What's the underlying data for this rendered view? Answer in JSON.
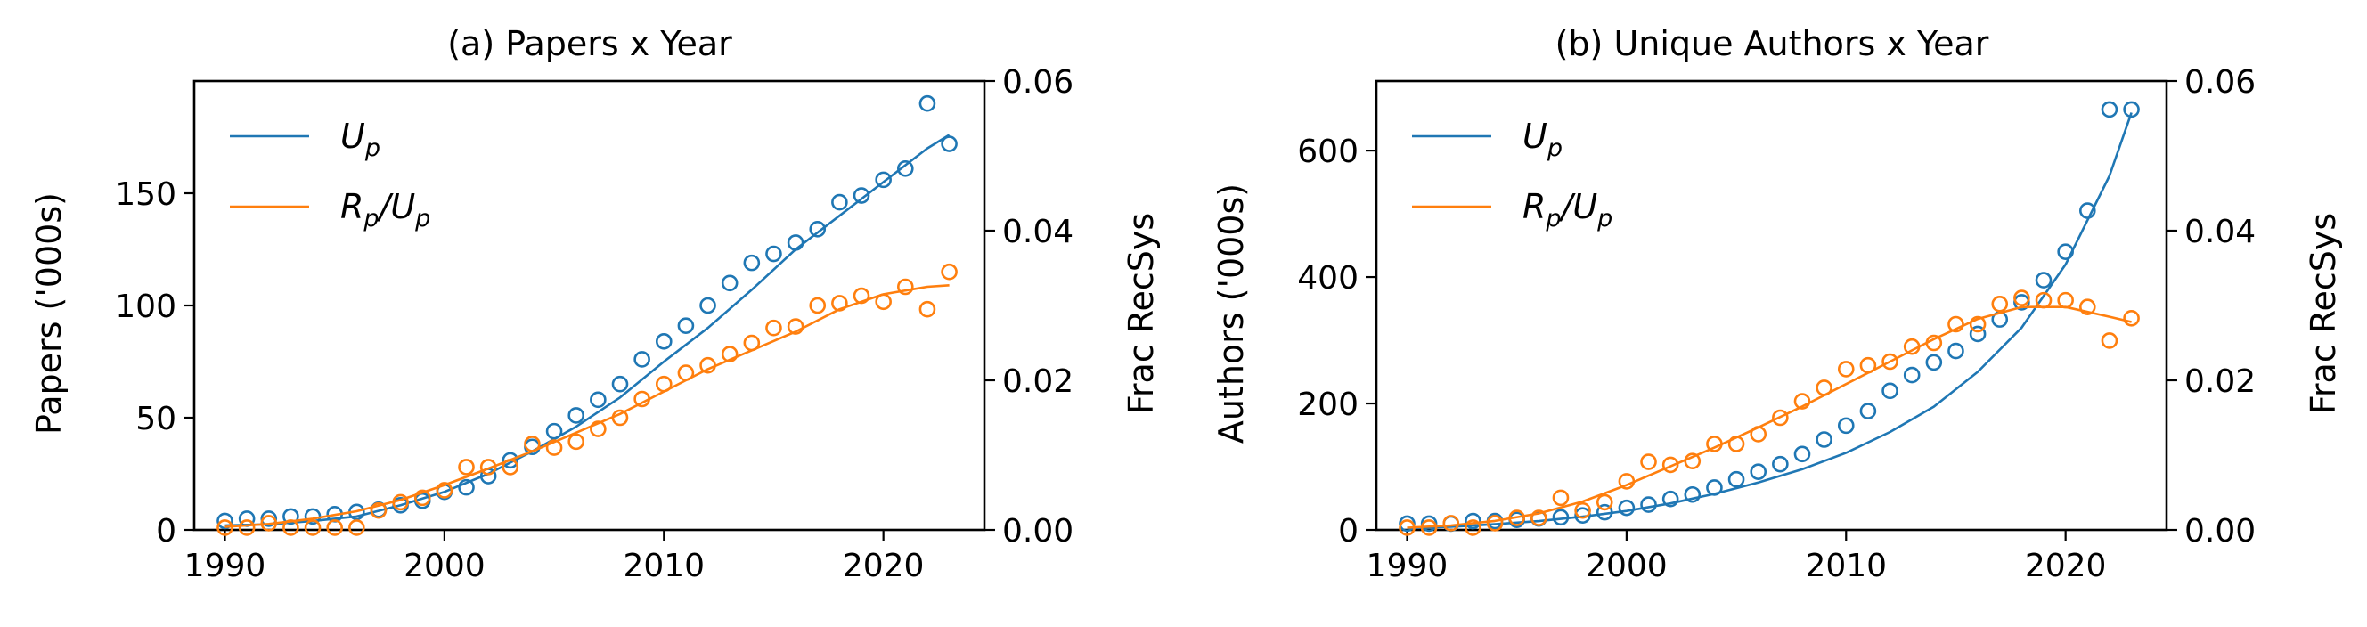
{
  "chart_data": [
    {
      "type": "scatter",
      "title": "(a) Papers x Year",
      "xlabel": "",
      "ylabel": "Papers ('000s)",
      "y2label": "Frac RecSys",
      "xlim": [
        1988.6,
        2024.6
      ],
      "ylim": [
        0,
        200
      ],
      "y2lim": [
        0,
        0.06
      ],
      "x_ticks": [
        1990,
        2000,
        2010,
        2020
      ],
      "y_ticks": [
        0,
        50,
        100,
        150
      ],
      "y2_ticks": [
        "0.00",
        "0.02",
        "0.04",
        "0.06"
      ],
      "legend_position": "top-left",
      "legend": [
        "U_p",
        "R_p/U_p"
      ],
      "series": [
        {
          "name": "U_p",
          "axis": "left",
          "color": "#1f77b4",
          "x": [
            1990,
            1991,
            1992,
            1993,
            1994,
            1995,
            1996,
            1997,
            1998,
            1999,
            2000,
            2001,
            2002,
            2003,
            2004,
            2005,
            2006,
            2007,
            2008,
            2009,
            2010,
            2011,
            2012,
            2013,
            2014,
            2015,
            2016,
            2017,
            2018,
            2019,
            2020,
            2021,
            2022,
            2023
          ],
          "y": [
            4,
            5,
            5,
            6,
            6,
            7,
            8,
            9,
            11,
            13,
            17,
            19,
            24,
            31,
            37,
            44,
            51,
            58,
            65,
            76,
            84,
            91,
            100,
            110,
            119,
            123,
            128,
            134,
            146,
            149,
            156,
            161,
            190,
            172
          ],
          "fit_x": [
            1990,
            1992,
            1994,
            1996,
            1998,
            2000,
            2002,
            2004,
            2006,
            2008,
            2010,
            2012,
            2014,
            2016,
            2018,
            2020,
            2022,
            2023
          ],
          "fit_y": [
            2,
            2.5,
            4,
            6,
            11,
            17,
            25,
            35,
            46,
            59,
            75,
            90,
            107,
            125,
            140,
            155,
            170,
            176
          ]
        },
        {
          "name": "R_p/U_p",
          "axis": "right",
          "color": "#ff7f0e",
          "x": [
            1990,
            1991,
            1992,
            1993,
            1994,
            1995,
            1996,
            1997,
            1998,
            1999,
            2000,
            2001,
            2002,
            2003,
            2004,
            2005,
            2006,
            2007,
            2008,
            2009,
            2010,
            2011,
            2012,
            2013,
            2014,
            2015,
            2016,
            2017,
            2018,
            2019,
            2020,
            2021,
            2022,
            2023
          ],
          "y": [
            0.0003,
            0.0003,
            0.0009,
            0.0003,
            0.0003,
            0.0003,
            0.0003,
            0.0026,
            0.0037,
            0.0043,
            0.0053,
            0.0084,
            0.0084,
            0.0084,
            0.0115,
            0.011,
            0.0118,
            0.0135,
            0.015,
            0.0175,
            0.0195,
            0.021,
            0.022,
            0.0235,
            0.025,
            0.027,
            0.0272,
            0.03,
            0.0303,
            0.0313,
            0.0305,
            0.0325,
            0.0295,
            0.0345
          ],
          "fit_x": [
            1990,
            1992,
            1994,
            1996,
            1998,
            2000,
            2002,
            2004,
            2006,
            2008,
            2010,
            2012,
            2014,
            2016,
            2018,
            2020,
            2022,
            2023
          ],
          "fit_y": [
            0.0004,
            0.0008,
            0.0015,
            0.0025,
            0.004,
            0.006,
            0.0082,
            0.0105,
            0.013,
            0.0155,
            0.0185,
            0.0215,
            0.024,
            0.0265,
            0.0295,
            0.0315,
            0.0325,
            0.0327
          ]
        }
      ]
    },
    {
      "type": "scatter",
      "title": "(b) Unique Authors x Year",
      "xlabel": "",
      "ylabel": "Authors ('000s)",
      "y2label": "Frac RecSys",
      "xlim": [
        1988.6,
        2024.6
      ],
      "ylim": [
        0,
        710
      ],
      "y2lim": [
        0,
        0.06
      ],
      "x_ticks": [
        1990,
        2000,
        2010,
        2020
      ],
      "y_ticks": [
        0,
        200,
        400,
        600
      ],
      "y2_ticks": [
        "0.00",
        "0.02",
        "0.04",
        "0.06"
      ],
      "legend_position": "top-left",
      "legend": [
        "U_p",
        "R_p/U_p"
      ],
      "series": [
        {
          "name": "U_p",
          "axis": "left",
          "color": "#1f77b4",
          "x": [
            1990,
            1991,
            1992,
            1993,
            1994,
            1995,
            1996,
            1997,
            1998,
            1999,
            2000,
            2001,
            2002,
            2003,
            2004,
            2005,
            2006,
            2007,
            2008,
            2009,
            2010,
            2011,
            2012,
            2013,
            2014,
            2015,
            2016,
            2017,
            2018,
            2019,
            2020,
            2021,
            2022,
            2023
          ],
          "y": [
            10,
            10,
            10,
            14,
            14,
            16,
            18,
            20,
            23,
            28,
            35,
            40,
            49,
            56,
            67,
            80,
            92,
            104,
            120,
            143,
            165,
            188,
            220,
            245,
            265,
            283,
            310,
            333,
            360,
            395,
            440,
            505,
            665,
            665
          ],
          "fit_x": [
            1990,
            1992,
            1994,
            1996,
            1998,
            2000,
            2002,
            2004,
            2006,
            2008,
            2010,
            2012,
            2014,
            2016,
            2018,
            2020,
            2022,
            2023
          ],
          "fit_y": [
            3,
            5,
            9,
            14,
            21,
            30,
            42,
            57,
            75,
            96,
            122,
            155,
            195,
            250,
            320,
            420,
            560,
            660
          ]
        },
        {
          "name": "R_p/U_p",
          "axis": "right",
          "color": "#ff7f0e",
          "x": [
            1990,
            1991,
            1992,
            1993,
            1994,
            1995,
            1996,
            1997,
            1998,
            1999,
            2000,
            2001,
            2002,
            2003,
            2004,
            2005,
            2006,
            2007,
            2008,
            2009,
            2010,
            2011,
            2012,
            2013,
            2014,
            2015,
            2016,
            2017,
            2018,
            2019,
            2020,
            2021,
            2022,
            2023
          ],
          "y": [
            0.0003,
            0.0003,
            0.0009,
            0.0003,
            0.0009,
            0.0016,
            0.0016,
            0.0043,
            0.0026,
            0.0037,
            0.0065,
            0.0091,
            0.0087,
            0.0092,
            0.0115,
            0.0115,
            0.0128,
            0.015,
            0.0172,
            0.019,
            0.0215,
            0.022,
            0.0225,
            0.0245,
            0.025,
            0.0275,
            0.0275,
            0.0302,
            0.031,
            0.0307,
            0.0307,
            0.0298,
            0.0253,
            0.0283
          ],
          "fit_x": [
            1990,
            1992,
            1994,
            1996,
            1998,
            2000,
            2002,
            2004,
            2006,
            2008,
            2010,
            2012,
            2014,
            2016,
            2018,
            2020,
            2022,
            2023
          ],
          "fit_y": [
            0.0003,
            0.0006,
            0.0012,
            0.0022,
            0.0038,
            0.006,
            0.0085,
            0.011,
            0.0137,
            0.0165,
            0.0195,
            0.0225,
            0.0255,
            0.0282,
            0.0298,
            0.0298,
            0.0285,
            0.0278
          ]
        }
      ]
    }
  ]
}
